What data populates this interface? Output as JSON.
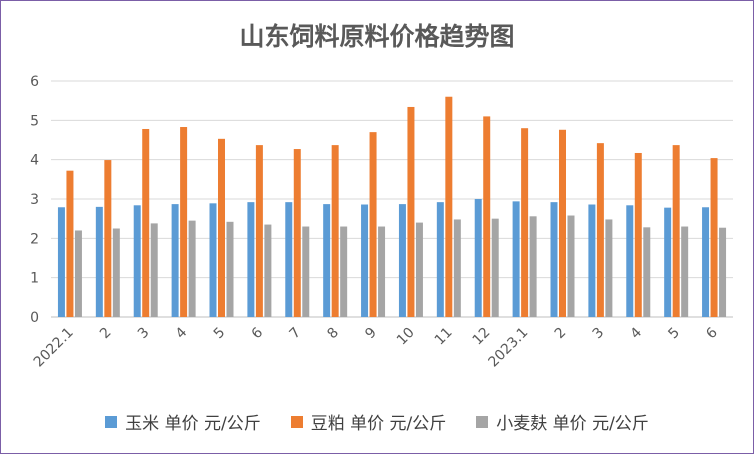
{
  "chart_data": {
    "type": "bar",
    "title": "山东饲料原料价格趋势图",
    "xlabel": "",
    "ylabel": "",
    "ylim": [
      0,
      6
    ],
    "yticks": [
      "0",
      "1",
      "2",
      "3",
      "4",
      "5",
      "6"
    ],
    "grid": true,
    "legend_position": "bottom",
    "categories": [
      "2022.1",
      "2",
      "3",
      "4",
      "5",
      "6",
      "7",
      "8",
      "9",
      "10",
      "11",
      "12",
      "2023.1",
      "2",
      "3",
      "4",
      "5",
      "6"
    ],
    "series": [
      {
        "name": "玉米 单价 元/公斤",
        "color": "#5b9bd5",
        "values": [
          2.79,
          2.8,
          2.84,
          2.87,
          2.89,
          2.92,
          2.92,
          2.87,
          2.86,
          2.87,
          2.92,
          3.0,
          2.94,
          2.92,
          2.86,
          2.84,
          2.78,
          2.79
        ]
      },
      {
        "name": "豆粕 单价 元/公斤",
        "color": "#ed7d31",
        "values": [
          3.72,
          3.99,
          4.78,
          4.83,
          4.53,
          4.37,
          4.27,
          4.37,
          4.7,
          5.34,
          5.6,
          5.1,
          4.8,
          4.76,
          4.42,
          4.17,
          4.37,
          4.04
        ]
      },
      {
        "name": "小麦麸 单价 元/公斤",
        "color": "#a5a5a5",
        "values": [
          2.2,
          2.25,
          2.38,
          2.45,
          2.42,
          2.35,
          2.3,
          2.3,
          2.3,
          2.4,
          2.48,
          2.5,
          2.56,
          2.58,
          2.48,
          2.28,
          2.3,
          2.27
        ]
      }
    ]
  }
}
